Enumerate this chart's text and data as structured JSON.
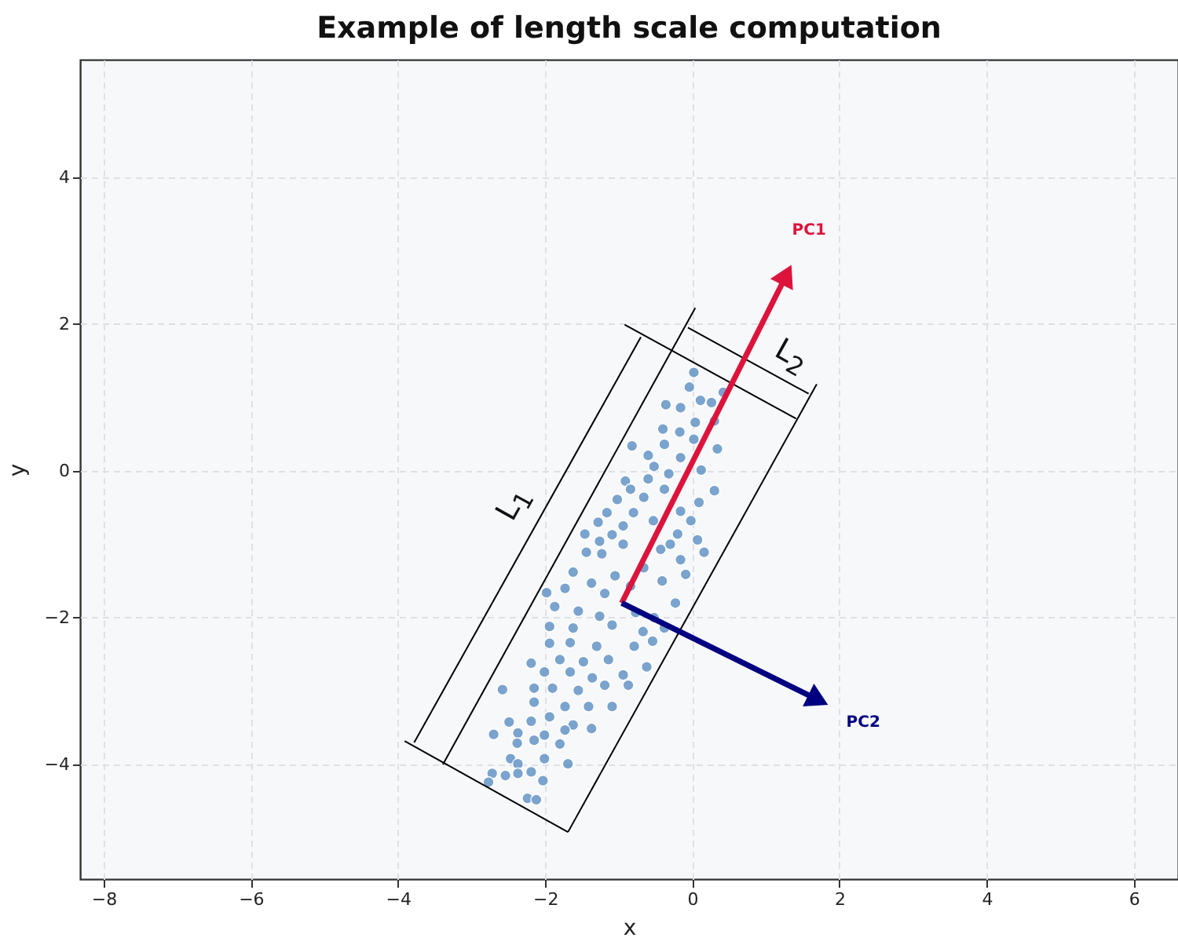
{
  "chart_data": {
    "type": "scatter",
    "title": "Example of length scale computation",
    "xlabel": "x",
    "ylabel": "y",
    "xlim": [
      -8.32,
      6.6
    ],
    "ylim": [
      -5.56,
      5.6
    ],
    "xticks": [
      -8,
      -6,
      -4,
      -2,
      0,
      2,
      4,
      6
    ],
    "yticks": [
      -4,
      -2,
      0,
      2,
      4
    ],
    "grid": true,
    "legend": false,
    "annotations": [
      "L$_{1}$",
      "L$_{2}$"
    ],
    "series": [
      {
        "marker": "circle",
        "color": "#5b8ec2",
        "x": [
          0.02,
          -0.04,
          -0.36,
          -0.16,
          0.11,
          0.26,
          0.42,
          -0.4,
          -0.17,
          0.04,
          0.3,
          -0.82,
          -0.38,
          0.02,
          0.34,
          -0.6,
          -0.16,
          -0.52,
          0.12,
          -0.91,
          -0.32,
          -0.6,
          -0.84,
          -0.38,
          0.3,
          -1.02,
          -0.66,
          0.09,
          -1.16,
          -0.8,
          -0.16,
          -1.28,
          -0.94,
          -0.53,
          -0.02,
          -1.46,
          -1.09,
          -0.2,
          -1.44,
          -1.23,
          -0.43,
          0.16,
          -1.26,
          -0.94,
          -0.3,
          0.07,
          -1.62,
          -1.37,
          -1.05,
          -0.66,
          -0.16,
          -0.09,
          -1.98,
          -1.73,
          -1.19,
          -0.84,
          -0.41,
          -0.23,
          -1.87,
          -1.55,
          -1.26,
          -0.77,
          -0.52,
          -1.94,
          -1.62,
          -1.09,
          -0.67,
          -0.38,
          -1.94,
          -1.66,
          -1.3,
          -0.79,
          -0.54,
          -1.8,
          -1.48,
          -1.14,
          -2.19,
          -2.01,
          -1.66,
          -1.36,
          -0.94,
          -0.62,
          -2.58,
          -2.15,
          -1.9,
          -1.55,
          -1.19,
          -0.87,
          -2.15,
          -1.73,
          -1.41,
          -1.09,
          -2.49,
          -2.19,
          -1.94,
          -1.62,
          -1.37,
          -2.37,
          -2.7,
          -2.01,
          -1.73,
          -2.38,
          -2.15,
          -1.8,
          -2.47,
          -2.37,
          -2.01,
          -1.69,
          -2.72,
          -2.54,
          -2.37,
          -2.19,
          -2.77,
          -2.03,
          -2.24,
          -2.12
        ],
        "values": [
          1.34,
          1.14,
          0.9,
          0.86,
          0.96,
          0.93,
          1.07,
          0.57,
          0.53,
          0.66,
          0.68,
          0.34,
          0.36,
          0.43,
          0.3,
          0.21,
          0.18,
          0.06,
          0.01,
          -0.14,
          -0.04,
          -0.11,
          -0.25,
          -0.25,
          -0.27,
          -0.39,
          -0.36,
          -0.43,
          -0.57,
          -0.57,
          -0.55,
          -0.7,
          -0.75,
          -0.68,
          -0.68,
          -0.86,
          -0.87,
          -0.86,
          -1.11,
          -1.13,
          -1.07,
          -1.11,
          -0.96,
          -1.0,
          -1.0,
          -0.94,
          -1.38,
          -1.53,
          -1.43,
          -1.32,
          -1.21,
          -1.41,
          -1.66,
          -1.6,
          -1.67,
          -1.57,
          -1.5,
          -1.8,
          -1.85,
          -1.91,
          -1.98,
          -1.93,
          -2.0,
          -2.12,
          -2.14,
          -2.1,
          -2.19,
          -2.14,
          -2.35,
          -2.34,
          -2.39,
          -2.39,
          -2.32,
          -2.57,
          -2.6,
          -2.57,
          -2.62,
          -2.74,
          -2.74,
          -2.82,
          -2.78,
          -2.67,
          -2.98,
          -2.96,
          -2.96,
          -2.99,
          -2.92,
          -2.92,
          -3.15,
          -3.21,
          -3.21,
          -3.21,
          -3.42,
          -3.41,
          -3.35,
          -3.46,
          -3.51,
          -3.57,
          -3.59,
          -3.6,
          -3.53,
          -3.71,
          -3.67,
          -3.72,
          -3.92,
          -3.99,
          -3.92,
          -3.99,
          -4.12,
          -4.15,
          -4.12,
          -4.1,
          -4.24,
          -4.22,
          -4.46,
          -4.48
        ]
      },
      {
        "type": "line",
        "color": "#000000",
        "x": [
          0.04,
          -3.39
        ],
        "values": [
          2.22,
          -4.0
        ]
      },
      {
        "type": "line",
        "color": "#000000",
        "x": [
          -3.91,
          -1.69
        ],
        "values": [
          -3.68,
          -4.92
        ]
      },
      {
        "type": "line",
        "color": "#000000",
        "x": [
          1.69,
          -1.69
        ],
        "values": [
          1.18,
          -4.92
        ]
      },
      {
        "type": "line",
        "color": "#000000",
        "x": [
          -0.92,
          1.41
        ],
        "values": [
          1.99,
          0.71
        ]
      },
      {
        "type": "line",
        "color": "#000000",
        "x": [
          -0.7,
          -3.78
        ],
        "values": [
          1.82,
          -3.7
        ]
      },
      {
        "type": "line",
        "color": "#000000",
        "x": [
          -0.06,
          1.58
        ],
        "values": [
          1.95,
          1.05
        ]
      },
      {
        "type": "line",
        "name": "PC1",
        "color": "#dc143c",
        "marker": "triangle",
        "x": [
          -0.96,
          1.28
        ],
        "values": [
          -1.8,
          2.67
        ]
      },
      {
        "type": "line",
        "name": "PC2",
        "color": "#000080",
        "marker": "triangle",
        "x": [
          -0.96,
          1.71
        ],
        "values": [
          -1.8,
          -3.12
        ]
      }
    ]
  }
}
